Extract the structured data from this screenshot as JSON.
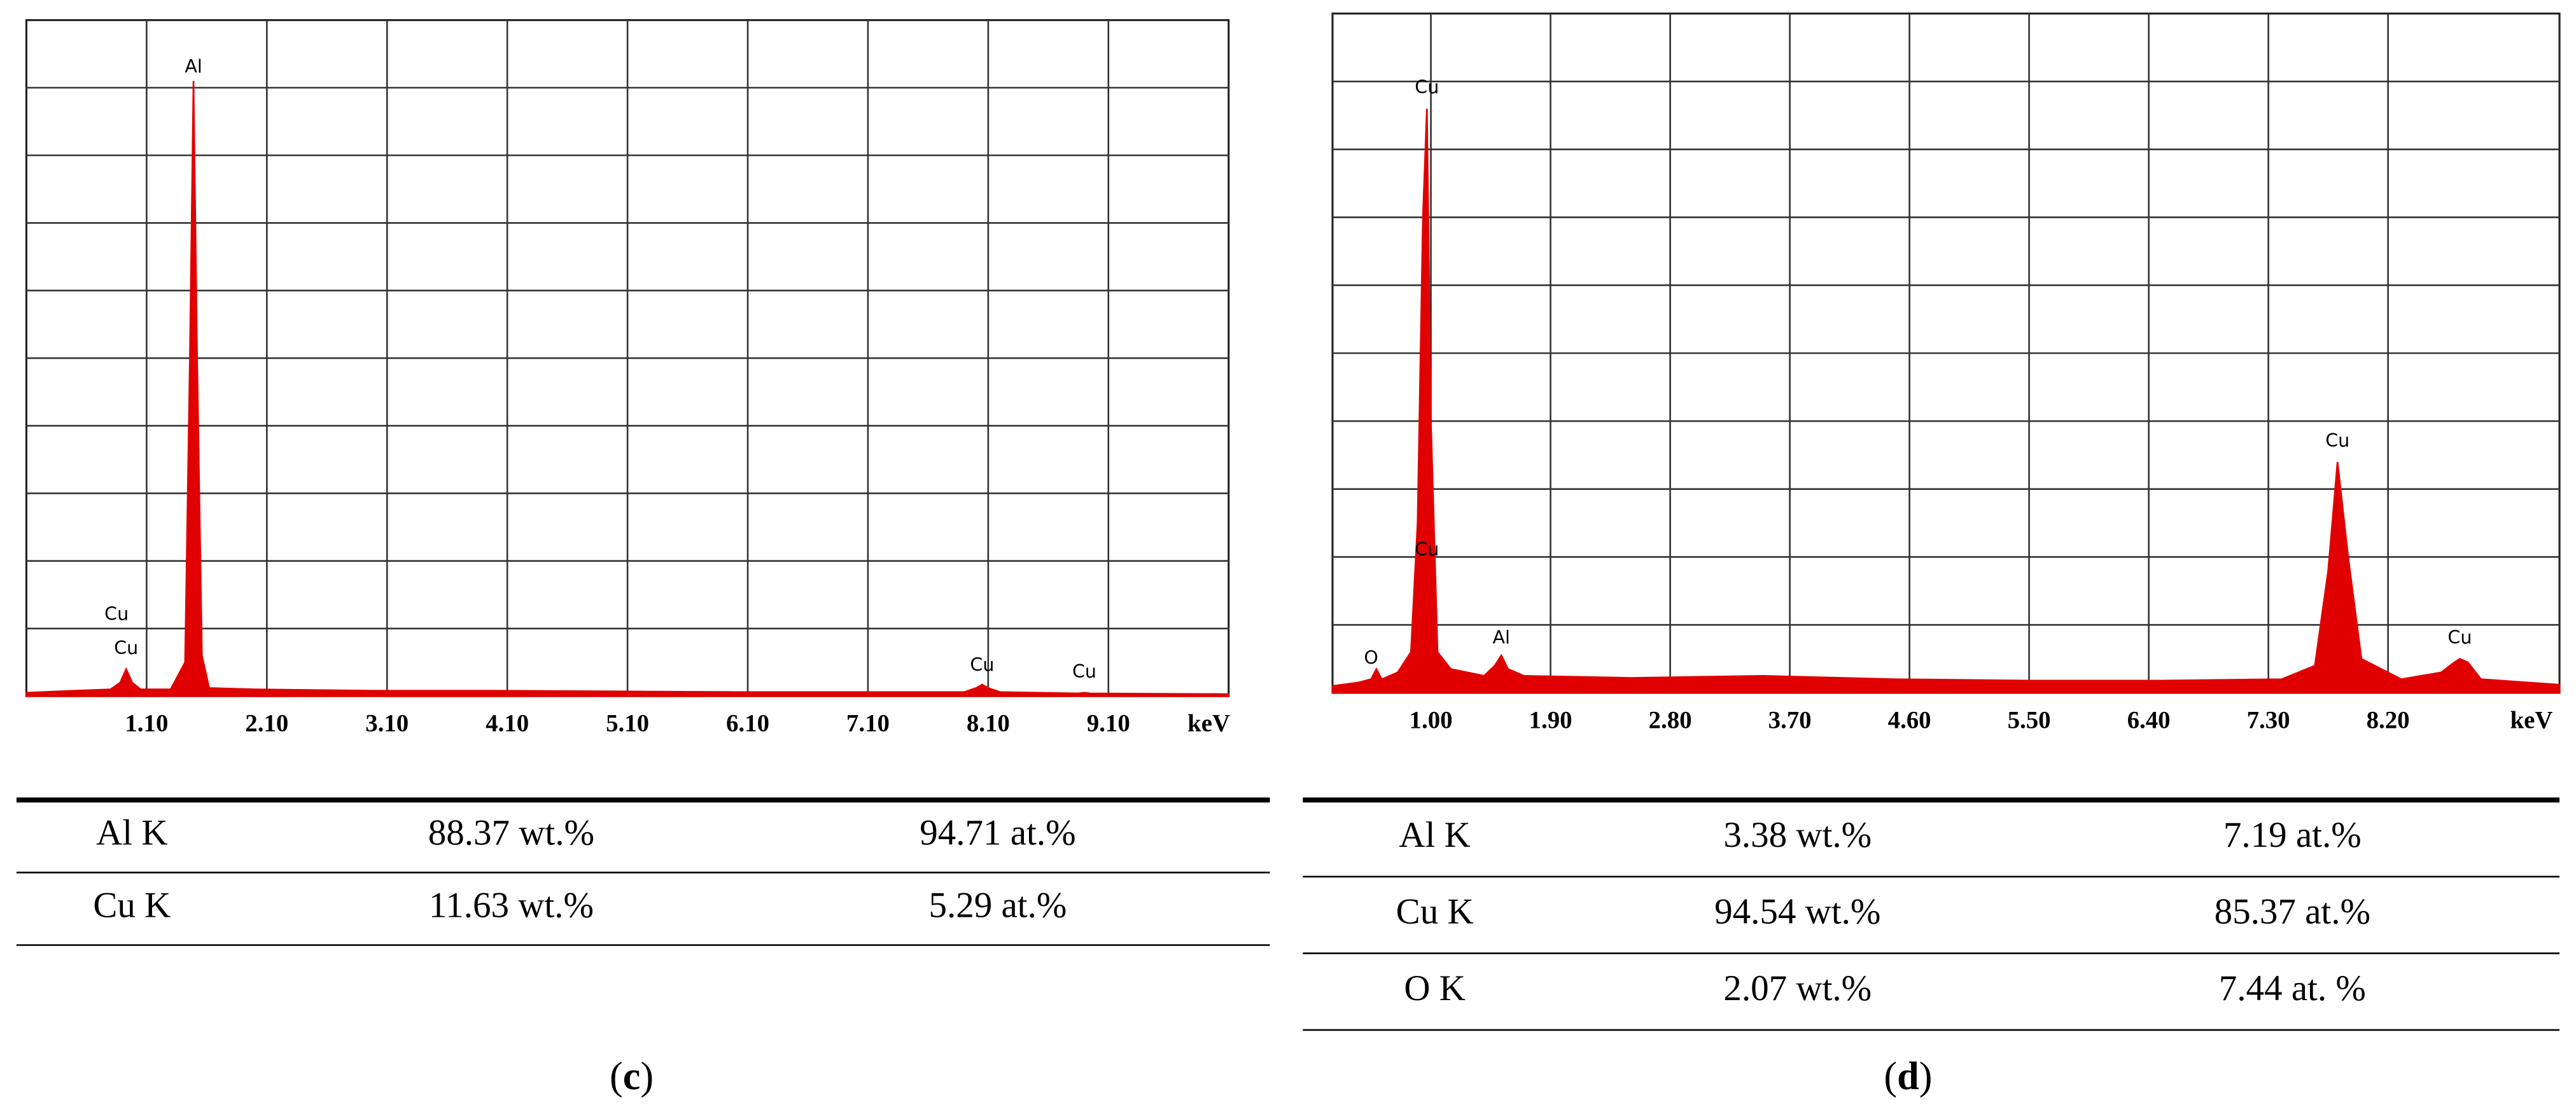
{
  "chart_data": [
    {
      "type": "area",
      "color": "#e00000",
      "x_label": "keV",
      "xlim": [
        0.1,
        10.1
      ],
      "ylim": [
        0,
        10
      ],
      "xticks": [
        {
          "value": 1.1,
          "label": "1.10"
        },
        {
          "value": 2.1,
          "label": "2.10"
        },
        {
          "value": 3.1,
          "label": "3.10"
        },
        {
          "value": 4.1,
          "label": "4.10"
        },
        {
          "value": 5.1,
          "label": "5.10"
        },
        {
          "value": 6.1,
          "label": "6.10"
        },
        {
          "value": 7.1,
          "label": "7.10"
        },
        {
          "value": 8.1,
          "label": "8.10"
        },
        {
          "value": 9.1,
          "label": "9.10"
        }
      ],
      "x": [
        0.1,
        0.5,
        0.8,
        0.88,
        0.93,
        0.98,
        1.05,
        1.3,
        1.42,
        1.46,
        1.49,
        1.52,
        1.56,
        1.62,
        2.0,
        3.0,
        4.0,
        5.0,
        6.0,
        7.0,
        7.9,
        8.0,
        8.05,
        8.1,
        8.2,
        8.85,
        8.9,
        8.95,
        10.1
      ],
      "values": [
        0.05,
        0.08,
        0.1,
        0.2,
        0.4,
        0.2,
        0.1,
        0.1,
        0.5,
        5,
        9.1,
        5,
        0.6,
        0.12,
        0.1,
        0.08,
        0.08,
        0.07,
        0.06,
        0.06,
        0.06,
        0.12,
        0.17,
        0.12,
        0.06,
        0.04,
        0.05,
        0.04,
        0.03
      ],
      "annotations": [
        {
          "text": "Al",
          "x": 1.49,
          "y": 9.3
        },
        {
          "text": "Cu",
          "x": 0.85,
          "y": 1.2
        },
        {
          "text": "Cu",
          "x": 0.93,
          "y": 0.7
        },
        {
          "text": "Cu",
          "x": 8.05,
          "y": 0.45
        },
        {
          "text": "Cu",
          "x": 8.9,
          "y": 0.35
        }
      ]
    },
    {
      "type": "area",
      "color": "#e00000",
      "x_label": "keV",
      "xlim": [
        0.26,
        9.49
      ],
      "ylim": [
        0,
        10
      ],
      "xticks": [
        {
          "value": 1.0,
          "label": "1.00"
        },
        {
          "value": 1.9,
          "label": "1.90"
        },
        {
          "value": 2.8,
          "label": "2.80"
        },
        {
          "value": 3.7,
          "label": "3.70"
        },
        {
          "value": 4.6,
          "label": "4.60"
        },
        {
          "value": 5.5,
          "label": "5.50"
        },
        {
          "value": 6.4,
          "label": "6.40"
        },
        {
          "value": 7.3,
          "label": "7.30"
        },
        {
          "value": 8.2,
          "label": "8.20"
        }
      ],
      "x": [
        0.26,
        0.45,
        0.55,
        0.59,
        0.63,
        0.75,
        0.85,
        0.9,
        0.94,
        0.97,
        1.0,
        1.05,
        1.15,
        1.4,
        1.48,
        1.53,
        1.58,
        1.7,
        2.5,
        3.5,
        4.5,
        5.5,
        6.5,
        7.4,
        7.65,
        7.75,
        7.82,
        7.9,
        8.0,
        8.3,
        8.6,
        8.7,
        8.74,
        8.8,
        8.9,
        9.49
      ],
      "values": [
        0.1,
        0.15,
        0.2,
        0.35,
        0.2,
        0.3,
        0.6,
        2.5,
        7.0,
        8.6,
        4.0,
        0.6,
        0.35,
        0.25,
        0.4,
        0.55,
        0.35,
        0.25,
        0.22,
        0.25,
        0.2,
        0.18,
        0.18,
        0.2,
        0.4,
        1.8,
        3.4,
        2.0,
        0.5,
        0.2,
        0.3,
        0.45,
        0.5,
        0.45,
        0.2,
        0.12
      ],
      "annotations": [
        {
          "text": "Cu",
          "x": 0.97,
          "y": 8.9
        },
        {
          "text": "Cu",
          "x": 0.97,
          "y": 2.1
        },
        {
          "text": "O",
          "x": 0.55,
          "y": 0.5
        },
        {
          "text": "Al",
          "x": 1.53,
          "y": 0.8
        },
        {
          "text": "Cu",
          "x": 7.82,
          "y": 3.7
        },
        {
          "text": "Cu",
          "x": 8.74,
          "y": 0.8
        }
      ]
    }
  ],
  "tables": [
    {
      "rows": [
        [
          "Al K",
          "88.37 wt.%",
          "94.71 at.%"
        ],
        [
          "Cu K",
          "11.63 wt.%",
          "5.29 at.%"
        ]
      ]
    },
    {
      "rows": [
        [
          "Al K",
          "3.38 wt.%",
          "7.19 at.%"
        ],
        [
          "Cu K",
          "94.54 wt.%",
          "85.37 at.%"
        ],
        [
          "O K",
          "2.07 wt.%",
          "7.44 at. %"
        ]
      ]
    }
  ],
  "captions": [
    [
      "(",
      "c",
      ")"
    ],
    [
      "(",
      "d",
      ")"
    ]
  ]
}
